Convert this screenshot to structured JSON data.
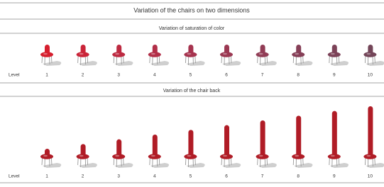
{
  "title": "Variation of the chairs on two dimensions",
  "sections": [
    {
      "title": "Variation of saturation of color",
      "row_label": "Level",
      "levels": [
        1,
        2,
        3,
        4,
        5,
        6,
        7,
        8,
        9,
        10
      ]
    },
    {
      "title": "Variation of the chair back",
      "row_label": "Level",
      "levels": [
        1,
        2,
        3,
        4,
        5,
        6,
        7,
        8,
        9,
        10
      ]
    }
  ]
}
